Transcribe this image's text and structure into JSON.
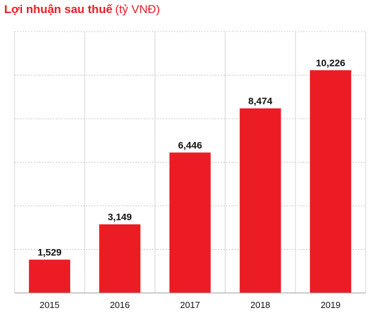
{
  "title": {
    "main": "Lợi nhuận sau thuế",
    "unit": "(tỷ VNĐ)"
  },
  "colors": {
    "accent": "#ec1c24",
    "bar": "#ec1c24",
    "grid": "#c8c8c8",
    "axis": "#999999",
    "text": "#111111"
  },
  "chart_data": {
    "type": "bar",
    "title": "Lợi nhuận sau thuế (tỷ VNĐ)",
    "xlabel": "",
    "ylabel": "",
    "categories": [
      "2015",
      "2016",
      "2017",
      "2018",
      "2019"
    ],
    "values": [
      1529,
      3149,
      6446,
      8474,
      10226
    ],
    "value_labels": [
      "1,529",
      "3,149",
      "6,446",
      "8,474",
      "10,226"
    ],
    "ylim": [
      0,
      12000
    ],
    "grid": true,
    "legend": "none"
  }
}
